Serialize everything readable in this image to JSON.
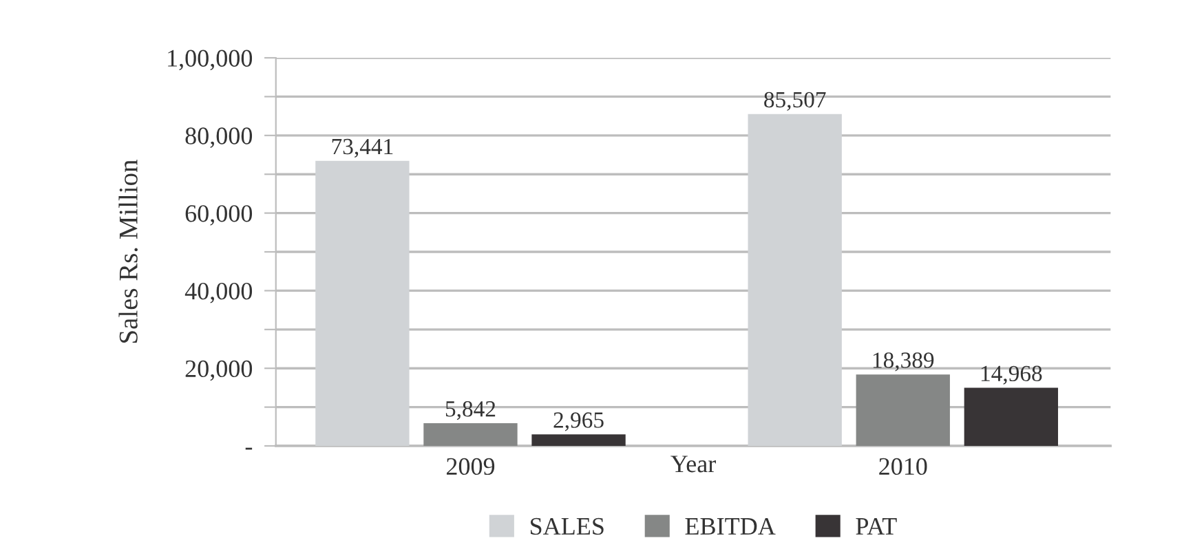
{
  "chart_data": {
    "type": "bar",
    "xlabel": "Year",
    "ylabel": "Sales Rs. Million",
    "categories": [
      "2009",
      "2010"
    ],
    "series": [
      {
        "name": "SALES",
        "color": "#d0d3d6",
        "values": [
          73441,
          85507
        ],
        "value_labels": [
          "73,441",
          "85,507"
        ]
      },
      {
        "name": "EBITDA",
        "color": "#858786",
        "values": [
          5842,
          18389
        ],
        "value_labels": [
          "5,842",
          "18,389"
        ]
      },
      {
        "name": "PAT",
        "color": "#383436",
        "values": [
          2965,
          14968
        ],
        "value_labels": [
          "2,965",
          "14,968"
        ]
      }
    ],
    "ylim": [
      0,
      100000
    ],
    "yticks": [
      {
        "value": 0,
        "label": "-"
      },
      {
        "value": 10000,
        "label": null
      },
      {
        "value": 20000,
        "label": "20,000"
      },
      {
        "value": 30000,
        "label": null
      },
      {
        "value": 40000,
        "label": "40,000"
      },
      {
        "value": 50000,
        "label": null
      },
      {
        "value": 60000,
        "label": "60,000"
      },
      {
        "value": 70000,
        "label": null
      },
      {
        "value": 80000,
        "label": "80,000"
      },
      {
        "value": 90000,
        "label": null
      },
      {
        "value": 100000,
        "label": "1,00,000"
      }
    ],
    "grid": "y",
    "legend": "bottom"
  }
}
